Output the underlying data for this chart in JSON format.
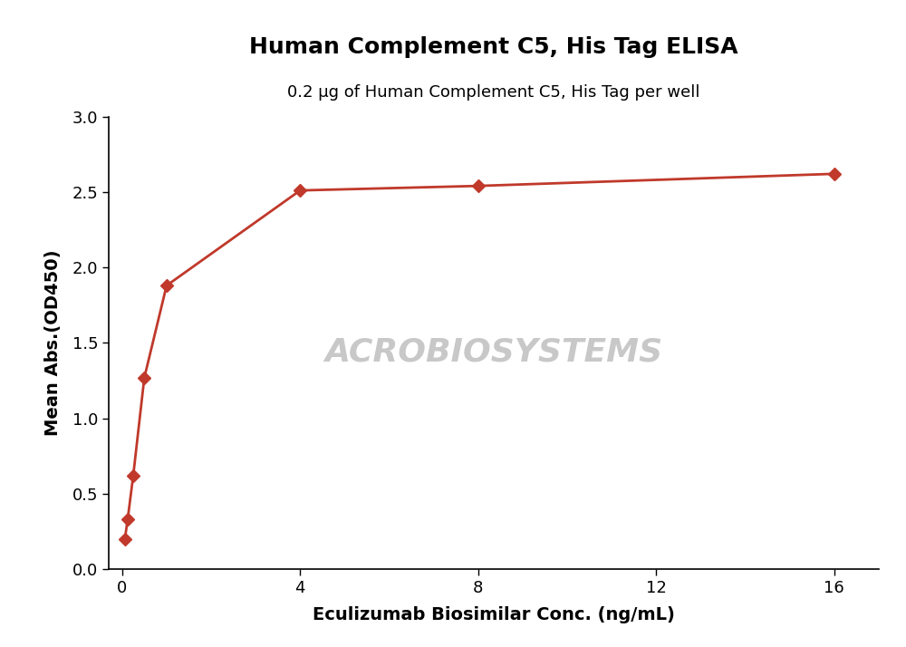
{
  "title": "Human Complement C5, His Tag ELISA",
  "subtitle": "0.2 μg of Human Complement C5, His Tag per well",
  "xlabel": "Eculizumab Biosimilar Conc. (ng/mL)",
  "ylabel": "Mean Abs.(OD450)",
  "x_data": [
    0.0625,
    0.125,
    0.25,
    0.5,
    1.0,
    4.0,
    8.0,
    16.0
  ],
  "y_data": [
    0.2,
    0.33,
    0.62,
    1.27,
    1.88,
    2.51,
    2.54,
    2.62
  ],
  "line_color": "#C0392B",
  "marker_color": "#C0392B",
  "xlim": [
    -0.3,
    17
  ],
  "ylim": [
    0.0,
    3.0
  ],
  "xticks": [
    0,
    4,
    8,
    12,
    16
  ],
  "yticks": [
    0.0,
    0.5,
    1.0,
    1.5,
    2.0,
    2.5,
    3.0
  ],
  "title_fontsize": 18,
  "subtitle_fontsize": 13,
  "label_fontsize": 14,
  "tick_fontsize": 13,
  "background_color": "#ffffff",
  "watermark_text": "ACROBIOSYSTEMS",
  "watermark_color": "#c8c8c8"
}
